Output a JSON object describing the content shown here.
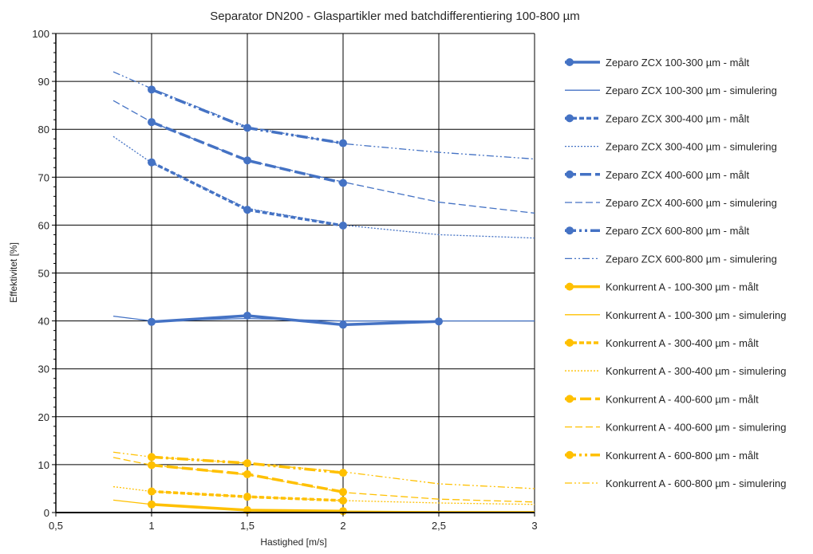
{
  "chart_data": {
    "type": "line",
    "title": "Separator DN200 - Glaspartikler med batchdifferentiering 100-800 µm",
    "xlabel": "Hastighed [m/s]",
    "ylabel": "Effektivitet [%]",
    "xlim": [
      0.5,
      3
    ],
    "ylim": [
      0,
      100
    ],
    "xticks": [
      "0,5",
      "1",
      "1,5",
      "2",
      "2,5",
      "3"
    ],
    "yticks": [
      "0",
      "10",
      "20",
      "30",
      "40",
      "50",
      "60",
      "70",
      "80",
      "90",
      "100"
    ],
    "grid": true,
    "legend_position": "right",
    "colors": {
      "zeparo": "#4472C4",
      "konkurrent": "#FFC000",
      "grid": "#000000"
    },
    "series": [
      {
        "name": "Zeparo ZCX 100-300 µm - målt",
        "group": "zeparo",
        "style": "measured",
        "dash": "solid",
        "x": [
          1,
          1.5,
          2,
          2.5
        ],
        "y": [
          39.8,
          41.1,
          39.2,
          39.9
        ]
      },
      {
        "name": "Zeparo ZCX 100-300 µm - simulering",
        "group": "zeparo",
        "style": "sim",
        "dash": "solid",
        "x": [
          0.8,
          1,
          1.5,
          2,
          2.5,
          3
        ],
        "y": [
          41,
          40,
          40.5,
          40,
          40,
          40
        ]
      },
      {
        "name": "Zeparo ZCX 300-400 µm - målt",
        "group": "zeparo",
        "style": "measured",
        "dash": "dot",
        "x": [
          1,
          1.5,
          2
        ],
        "y": [
          73.1,
          63.2,
          59.9
        ]
      },
      {
        "name": "Zeparo ZCX 300-400 µm - simulering",
        "group": "zeparo",
        "style": "sim",
        "dash": "dot",
        "x": [
          0.8,
          1,
          1.5,
          2,
          2.5,
          3
        ],
        "y": [
          78.5,
          73,
          63.5,
          60,
          58,
          57.3
        ]
      },
      {
        "name": "Zeparo ZCX 400-600 µm - målt",
        "group": "zeparo",
        "style": "measured",
        "dash": "dash",
        "x": [
          1,
          1.5,
          2
        ],
        "y": [
          81.5,
          73.5,
          68.8
        ]
      },
      {
        "name": "Zeparo ZCX 400-600 µm - simulering",
        "group": "zeparo",
        "style": "sim",
        "dash": "dash",
        "x": [
          0.8,
          1,
          1.5,
          2,
          2.5,
          3
        ],
        "y": [
          86,
          81.5,
          73.5,
          69,
          64.8,
          62.5
        ]
      },
      {
        "name": "Zeparo ZCX 600-800 µm - målt",
        "group": "zeparo",
        "style": "measured",
        "dash": "dashdot",
        "x": [
          1,
          1.5,
          2
        ],
        "y": [
          88.3,
          80.3,
          77.1
        ]
      },
      {
        "name": "Zeparo ZCX 600-800 µm - simulering",
        "group": "zeparo",
        "style": "sim",
        "dash": "dashdot",
        "x": [
          0.8,
          1,
          1.5,
          2,
          2.5,
          3
        ],
        "y": [
          92,
          88.5,
          80.5,
          77,
          75.2,
          73.8
        ]
      },
      {
        "name": "Konkurrent A - 100-300 µm - målt",
        "group": "konkurrent",
        "style": "measured",
        "dash": "solid",
        "x": [
          1,
          1.5,
          2
        ],
        "y": [
          1.7,
          0.5,
          0.3
        ]
      },
      {
        "name": "Konkurrent A - 100-300 µm - simulering",
        "group": "konkurrent",
        "style": "sim",
        "dash": "solid",
        "x": [
          0.8,
          1,
          1.5,
          2,
          2.5,
          3
        ],
        "y": [
          2.6,
          1.7,
          0.6,
          0.3,
          0.2,
          0.2
        ]
      },
      {
        "name": "Konkurrent A - 300-400 µm - målt",
        "group": "konkurrent",
        "style": "measured",
        "dash": "dot",
        "x": [
          1,
          1.5,
          2
        ],
        "y": [
          4.4,
          3.3,
          2.5
        ]
      },
      {
        "name": "Konkurrent A - 300-400 µm - simulering",
        "group": "konkurrent",
        "style": "sim",
        "dash": "dot",
        "x": [
          0.8,
          1,
          1.5,
          2,
          2.5,
          3
        ],
        "y": [
          5.4,
          4.4,
          3.3,
          2.5,
          2,
          1.7
        ]
      },
      {
        "name": "Konkurrent A - 400-600 µm - målt",
        "group": "konkurrent",
        "style": "measured",
        "dash": "dash",
        "x": [
          1,
          1.5,
          2
        ],
        "y": [
          9.9,
          8.0,
          4.3
        ]
      },
      {
        "name": "Konkurrent A - 400-600 µm - simulering",
        "group": "konkurrent",
        "style": "sim",
        "dash": "dash",
        "x": [
          0.8,
          1,
          1.5,
          2,
          2.5,
          3
        ],
        "y": [
          11.5,
          9.9,
          7.9,
          4.2,
          2.8,
          2.2
        ]
      },
      {
        "name": "Konkurrent A - 600-800 µm - målt",
        "group": "konkurrent",
        "style": "measured",
        "dash": "dashdot",
        "x": [
          1,
          1.5,
          2
        ],
        "y": [
          11.6,
          10.3,
          8.3
        ]
      },
      {
        "name": "Konkurrent A - 600-800 µm - simulering",
        "group": "konkurrent",
        "style": "sim",
        "dash": "dashdot",
        "x": [
          0.8,
          1,
          1.5,
          2,
          2.5,
          3
        ],
        "y": [
          12.6,
          11.6,
          10.3,
          8.5,
          6,
          5
        ]
      }
    ]
  }
}
